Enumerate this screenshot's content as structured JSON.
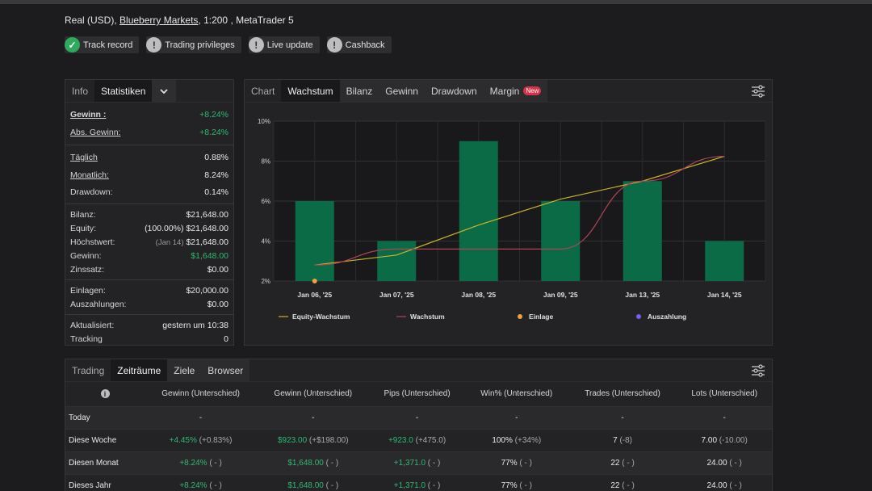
{
  "account": {
    "prefix": "Real (USD),",
    "broker": "Blueberry Markets",
    "suffix": ", 1:200 , MetaTrader 5"
  },
  "badges": [
    {
      "label": "Track record",
      "icon": "check-icon",
      "status": "ok"
    },
    {
      "label": "Trading privileges",
      "icon": "exclamation-icon",
      "status": "warn"
    },
    {
      "label": "Live update",
      "icon": "exclamation-icon",
      "status": "warn"
    },
    {
      "label": "Cashback",
      "icon": "exclamation-icon",
      "status": "warn"
    }
  ],
  "stats_tabs": {
    "info": "Info",
    "statistiken": "Statistiken"
  },
  "stats": {
    "gewinn": {
      "label": "Gewinn :",
      "value": "+8.24%"
    },
    "abs_gewinn": {
      "label": "Abs. Gewinn:",
      "value": "+8.24%"
    },
    "taeglich": {
      "label": "Täglich",
      "value": "0.88%"
    },
    "monatlich": {
      "label": "Monatlich:",
      "value": "8.24%"
    },
    "drawdown": {
      "label": "Drawdown:",
      "value": "0.14%"
    },
    "bilanz": {
      "label": "Bilanz:",
      "value": "$21,648.00"
    },
    "equity": {
      "label": "Equity:",
      "sub": "(100.00%)",
      "value": "$21,648.00"
    },
    "hoechstwert": {
      "label": "Höchstwert:",
      "sub": "(Jan 14)",
      "value": "$21,648.00"
    },
    "gewinn2": {
      "label": "Gewinn:",
      "value": "$1,648.00"
    },
    "zinssatz": {
      "label": "Zinssatz:",
      "value": "$0.00"
    },
    "einlagen": {
      "label": "Einlagen:",
      "value": "$20,000.00"
    },
    "auszahlungen": {
      "label": "Auszahlungen:",
      "value": "$0.00"
    },
    "aktualisiert": {
      "label": "Aktualisiert:",
      "value": "gestern um 10:38"
    },
    "tracking": {
      "label": "Tracking",
      "value": "0"
    }
  },
  "chart_tabs": {
    "chart": "Chart",
    "wachstum": "Wachstum",
    "bilanz": "Bilanz",
    "gewinn": "Gewinn",
    "drawdown": "Drawdown",
    "margin": "Margin",
    "new": "New"
  },
  "colors": {
    "bar": "#0b6b47",
    "equity_line": "#c9b42a",
    "wachstum_line": "#b04455",
    "einlage": "#f0a040",
    "auszahlung": "#7b5cf0",
    "green": "#2eb872"
  },
  "chart_data": {
    "type": "bar",
    "categories": [
      "Jan 06, '25",
      "Jan 07, '25",
      "Jan 08, '25",
      "Jan 09, '25",
      "Jan 13, '25",
      "Jan 14, '25"
    ],
    "values": [
      6.0,
      4.0,
      9.0,
      6.0,
      7.0,
      4.0
    ],
    "ylim": [
      2,
      10
    ],
    "yticks": [
      "2%",
      "4%",
      "6%",
      "8%",
      "10%"
    ],
    "ytick_values": [
      2,
      4,
      6,
      8,
      10
    ],
    "grid": true,
    "series": [
      {
        "name": "Equity-Wachstum",
        "type": "line",
        "values": [
          2.8,
          3.3,
          4.8,
          6.1,
          7.0,
          8.24
        ]
      },
      {
        "name": "Wachstum",
        "type": "line",
        "values": [
          2.8,
          3.6,
          3.6,
          3.6,
          7.0,
          8.24
        ]
      }
    ],
    "einlage_points": [
      {
        "x": "Jan 06, '25",
        "y": 2.0
      }
    ],
    "legend": [
      "Equity-Wachstum",
      "Wachstum",
      "Einlage",
      "Auszahlung"
    ],
    "legend_position": "bottom"
  },
  "bottom_tabs": {
    "trading": "Trading",
    "zeitraeume": "Zeiträume",
    "ziele": "Ziele",
    "browser": "Browser"
  },
  "table": {
    "info_icon": "i",
    "headers": [
      "Gewinn (Unterschied)",
      "Gewinn (Unterschied)",
      "Pips (Unterschied)",
      "Win% (Unterschied)",
      "Trades (Unterschied)",
      "Lots (Unterschied)"
    ],
    "rows": [
      {
        "label": "Today",
        "cells": [
          [
            "-",
            ""
          ],
          [
            "-",
            ""
          ],
          [
            "-",
            ""
          ],
          [
            "-",
            ""
          ],
          [
            "-",
            ""
          ],
          [
            "-",
            ""
          ]
        ]
      },
      {
        "label": "Diese Woche",
        "cells": [
          [
            "+4.45%",
            "(+0.83%)"
          ],
          [
            "$923.00",
            "(+$198.00)"
          ],
          [
            "+923.0",
            "(+475.0)"
          ],
          [
            "100%",
            "(+34%)"
          ],
          [
            "7",
            "(-8)"
          ],
          [
            "7.00",
            "(-10.00)"
          ]
        ]
      },
      {
        "label": "Diesen Monat",
        "cells": [
          [
            "+8.24%",
            "( - )"
          ],
          [
            "$1,648.00",
            "( - )"
          ],
          [
            "+1,371.0",
            "( - )"
          ],
          [
            "77%",
            "( - )"
          ],
          [
            "22",
            "( - )"
          ],
          [
            "24.00",
            "( - )"
          ]
        ]
      },
      {
        "label": "Dieses Jahr",
        "cells": [
          [
            "+8.24%",
            "( - )"
          ],
          [
            "$1,648.00",
            "( - )"
          ],
          [
            "+1,371.0",
            "( - )"
          ],
          [
            "77%",
            "( - )"
          ],
          [
            "22",
            "( - )"
          ],
          [
            "24.00",
            "( - )"
          ]
        ]
      }
    ]
  }
}
